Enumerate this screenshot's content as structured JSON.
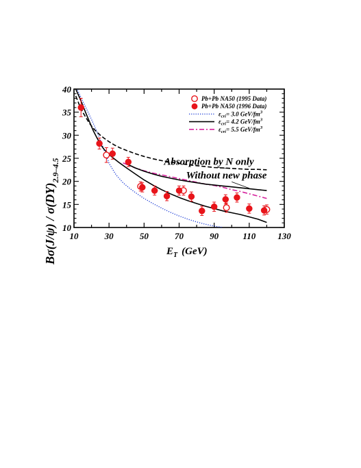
{
  "chart_data": {
    "type": "scatter",
    "xlabel": "E",
    "xlabel_sub": "T",
    "xlabel_unit": "(GeV)",
    "ylabel": "Bσ(J/ψ) / σ(DY)",
    "ylabel_sub": "2.9–4.5",
    "xlim": [
      10,
      130
    ],
    "ylim": [
      10,
      40
    ],
    "x_ticks": [
      "10",
      "30",
      "50",
      "70",
      "90",
      "110",
      "130"
    ],
    "y_ticks": [
      "10",
      "15",
      "20",
      "25",
      "30",
      "35",
      "40"
    ],
    "grid": false,
    "legend_position": "top-right",
    "legend": [
      {
        "label": "Pb+Pb  NA50 (1995 Data)",
        "marker": "open-circle",
        "color": "#e8141a"
      },
      {
        "label": "Pb+Pb  NA50 (1996 Data)",
        "marker": "filled-circle",
        "color": "#e8141a"
      },
      {
        "eps": "ε",
        "sub": "cri",
        "rest": "= 3.0 GeV/fm",
        "sup": "3",
        "line": "dotted",
        "color": "#1f3fd6"
      },
      {
        "eps": "ε",
        "sub": "cri",
        "rest": "= 4.2 GeV/fm",
        "sup": "3",
        "line": "solid",
        "color": "#000000"
      },
      {
        "eps": "ε",
        "sub": "cri",
        "rest": "= 5.5 GeV/fm",
        "sup": "3",
        "line": "dash-dot",
        "color": "#d6239e"
      }
    ],
    "annotations": [
      {
        "text": "Absorption by N only",
        "x": 87,
        "y": 23.6
      },
      {
        "text": "Without new phase",
        "x": 97,
        "y": 20.6
      }
    ],
    "series": [
      {
        "name": "Pb+Pb  NA50 (1995 Data)",
        "marker": "open-circle",
        "color": "#e8141a",
        "points": [
          {
            "x": 28.5,
            "y": 25.7,
            "err": 1.6
          },
          {
            "x": 48.0,
            "y": 18.9,
            "err": 1.0
          },
          {
            "x": 72.5,
            "y": 18.0,
            "err": 1.0
          },
          {
            "x": 97.0,
            "y": 14.3,
            "err": 1.0
          },
          {
            "x": 120.0,
            "y": 13.9,
            "err": 1.0
          }
        ]
      },
      {
        "name": "Pb+Pb  NA50 (1996 Data)",
        "marker": "filled-circle",
        "color": "#e8141a",
        "points": [
          {
            "x": 14.0,
            "y": 36.0,
            "err": 2.0
          },
          {
            "x": 24.5,
            "y": 28.2,
            "err": 1.2
          },
          {
            "x": 32.0,
            "y": 26.0,
            "err": 1.2
          },
          {
            "x": 41.0,
            "y": 24.2,
            "err": 1.0
          },
          {
            "x": 49.0,
            "y": 18.7,
            "err": 1.0
          },
          {
            "x": 56.0,
            "y": 18.0,
            "err": 1.0
          },
          {
            "x": 63.0,
            "y": 16.8,
            "err": 1.0
          },
          {
            "x": 70.0,
            "y": 18.0,
            "err": 1.0
          },
          {
            "x": 77.0,
            "y": 16.7,
            "err": 1.0
          },
          {
            "x": 83.0,
            "y": 13.6,
            "err": 1.0
          },
          {
            "x": 90.0,
            "y": 14.5,
            "err": 1.0
          },
          {
            "x": 96.5,
            "y": 16.1,
            "err": 1.0
          },
          {
            "x": 103.0,
            "y": 16.5,
            "err": 1.0
          },
          {
            "x": 110.0,
            "y": 14.1,
            "err": 1.0
          },
          {
            "x": 118.5,
            "y": 13.7,
            "err": 1.0
          }
        ]
      },
      {
        "name": "ε cri = 3.0 GeV/fm3",
        "line": "dotted",
        "color": "#1f3fd6",
        "x": [
          12,
          14,
          16,
          18,
          20,
          22,
          24,
          26,
          28,
          30,
          34,
          38,
          42,
          46,
          50,
          55,
          60,
          65,
          70,
          75,
          80,
          85,
          90,
          95
        ],
        "y": [
          39.8,
          38.2,
          36.6,
          35.0,
          33.4,
          31.7,
          30.0,
          28.0,
          25.9,
          23.9,
          21.4,
          19.7,
          18.4,
          17.3,
          16.3,
          15.2,
          14.2,
          13.3,
          12.5,
          11.8,
          11.2,
          10.7,
          10.3,
          10.0
        ]
      },
      {
        "name": "ε cri = 4.2 GeV/fm3",
        "line": "solid",
        "color": "#000000",
        "x": [
          11,
          13,
          15,
          17,
          19,
          21,
          23,
          25,
          27,
          30,
          33,
          36,
          40,
          45,
          50,
          55,
          60,
          65,
          70,
          75,
          80,
          85,
          90,
          95,
          100,
          105,
          110,
          115,
          120
        ],
        "y": [
          40.0,
          38.3,
          36.5,
          34.6,
          32.8,
          31.0,
          29.5,
          28.1,
          27.0,
          25.8,
          24.9,
          24.0,
          22.9,
          21.6,
          20.3,
          19.2,
          18.2,
          17.3,
          16.5,
          15.8,
          15.2,
          14.6,
          14.1,
          13.6,
          13.2,
          12.8,
          12.3,
          11.8,
          11.1
        ]
      },
      {
        "name": "ε cri = 5.5 GeV/fm3",
        "line": "dash-dot",
        "color": "#d6239e",
        "x": [
          38,
          45,
          50,
          55,
          60,
          65,
          70,
          75,
          80,
          85,
          90,
          95,
          100,
          105,
          110,
          115,
          120
        ],
        "y": [
          24.0,
          22.9,
          22.3,
          21.8,
          21.4,
          21.0,
          20.6,
          20.2,
          19.8,
          19.4,
          19.1,
          18.7,
          18.2,
          17.8,
          17.3,
          16.8,
          16.3
        ]
      },
      {
        "name": "Absorption by N only",
        "line": "dashed",
        "color": "#000000",
        "x": [
          11,
          13,
          15,
          17,
          19,
          21,
          23,
          25,
          27,
          30,
          33,
          36,
          40,
          45,
          50,
          55,
          60,
          65,
          70,
          75,
          80,
          85,
          90,
          95,
          100,
          105,
          110,
          115,
          120
        ],
        "y": [
          38.5,
          36.6,
          35.0,
          33.7,
          32.5,
          31.5,
          30.7,
          30.0,
          29.4,
          28.6,
          27.9,
          27.3,
          26.7,
          26.0,
          25.4,
          24.9,
          24.5,
          24.2,
          23.9,
          23.6,
          23.4,
          23.2,
          23.0,
          22.9,
          22.8,
          22.7,
          22.6,
          22.6,
          22.5
        ]
      },
      {
        "name": "Without new phase",
        "line": "solid",
        "color": "#000000",
        "x": [
          40,
          45,
          50,
          55,
          60,
          65,
          70,
          75,
          80,
          85,
          90,
          95,
          100,
          105,
          110,
          115,
          120
        ],
        "y": [
          23.8,
          22.9,
          22.2,
          21.6,
          21.1,
          20.7,
          20.3,
          20.0,
          19.7,
          19.4,
          19.2,
          19.0,
          18.8,
          18.6,
          18.4,
          18.2,
          18.0
        ]
      }
    ]
  }
}
